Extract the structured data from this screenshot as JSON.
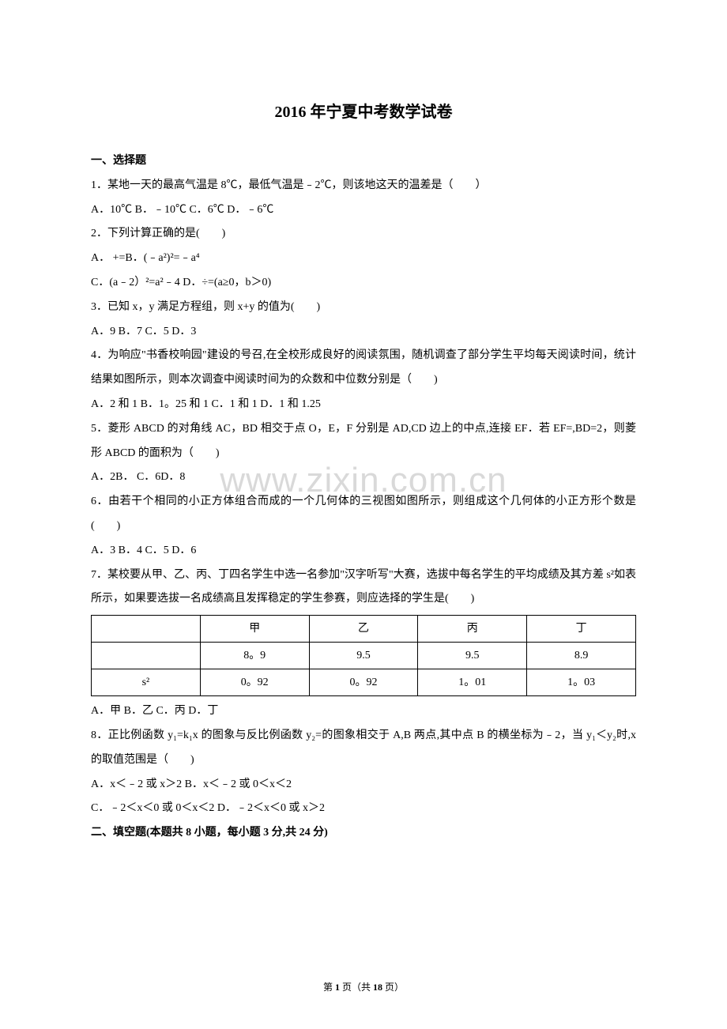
{
  "watermark": "www.zixin.com.cn",
  "title": "2016 年宁夏中考数学试卷",
  "section1": "一、选择题",
  "q1": "1．某地一天的最高气温是 8℃，最低气温是﹣2℃，则该地这天的温差是（　　）",
  "q1opts": "A．10℃ B．﹣10℃ C．6℃ D．﹣6℃",
  "q2": "2．下列计算正确的是(　　)",
  "q2optsA": "A． +=B．(﹣a²)²=﹣a⁴",
  "q2optsC": "C．(a﹣2）²=a²﹣4 D．÷=(a≥0，b＞0)",
  "q3": "3．已知 x，y 满足方程组，则 x+y 的值为(　　)",
  "q3opts": "A．9 B．7 C．5 D．3",
  "q4": "4．为响应\"书香校响园\"建设的号召,在全校形成良好的阅读氛围，随机调查了部分学生平均每天阅读时间，统计结果如图所示，则本次调查中阅读时间为的众数和中位数分别是（　　)",
  "q4opts": "A．2 和 1 B．1。25 和 1 C．1 和 1 D．1 和 1.25",
  "q5": "5．菱形 ABCD 的对角线 AC，BD 相交于点 O，E，F 分别是 AD,CD 边上的中点,连接 EF．若 EF=,BD=2，则菱形 ABCD 的面积为（　　)",
  "q5opts": "A．2B． C．6D．8",
  "q6": "6．由若干个相同的小正方体组合而成的一个几何体的三视图如图所示，则组成这个几何体的小正方形个数是(　　)",
  "q6opts": "A．3 B．4 C．5 D．6",
  "q7": "7．某校要从甲、乙、丙、丁四名学生中选一名参加\"汉字听写\"大赛，选拔中每名学生的平均成绩及其方差 s²如表所示，如果要选拔一名成绩高且发挥稳定的学生参赛，则应选择的学生是(　　)",
  "table": {
    "headers": [
      "",
      "甲",
      "乙",
      "丙",
      "丁"
    ],
    "row1": [
      "",
      "8。9",
      "9.5",
      "9.5",
      "8.9"
    ],
    "row2": [
      "s²",
      "0。92",
      "0。92",
      "1。01",
      "1。03"
    ]
  },
  "q7opts": "A．甲 B．乙 C．丙 D．丁",
  "q8": "8．正比例函数 y₁=k₁x 的图象与反比例函数 y₂=的图象相交于 A,B 两点,其中点 B 的横坐标为﹣2，当 y₁＜y₂时,x 的取值范围是（　　)",
  "q8optsA": "A．x＜﹣2 或 x＞2 B．x＜﹣2 或 0＜x＜2",
  "q8optsC": "C．﹣2＜x＜0 或 0＜x＜2 D．﹣2＜x＜0 或 x＞2",
  "section2": "二、填空题(本题共 8 小题，每小题 3 分,共 24 分)",
  "footer": {
    "prefix": "第 ",
    "page": "1",
    "mid": " 页（共 ",
    "total": "18",
    "suffix": " 页）"
  }
}
